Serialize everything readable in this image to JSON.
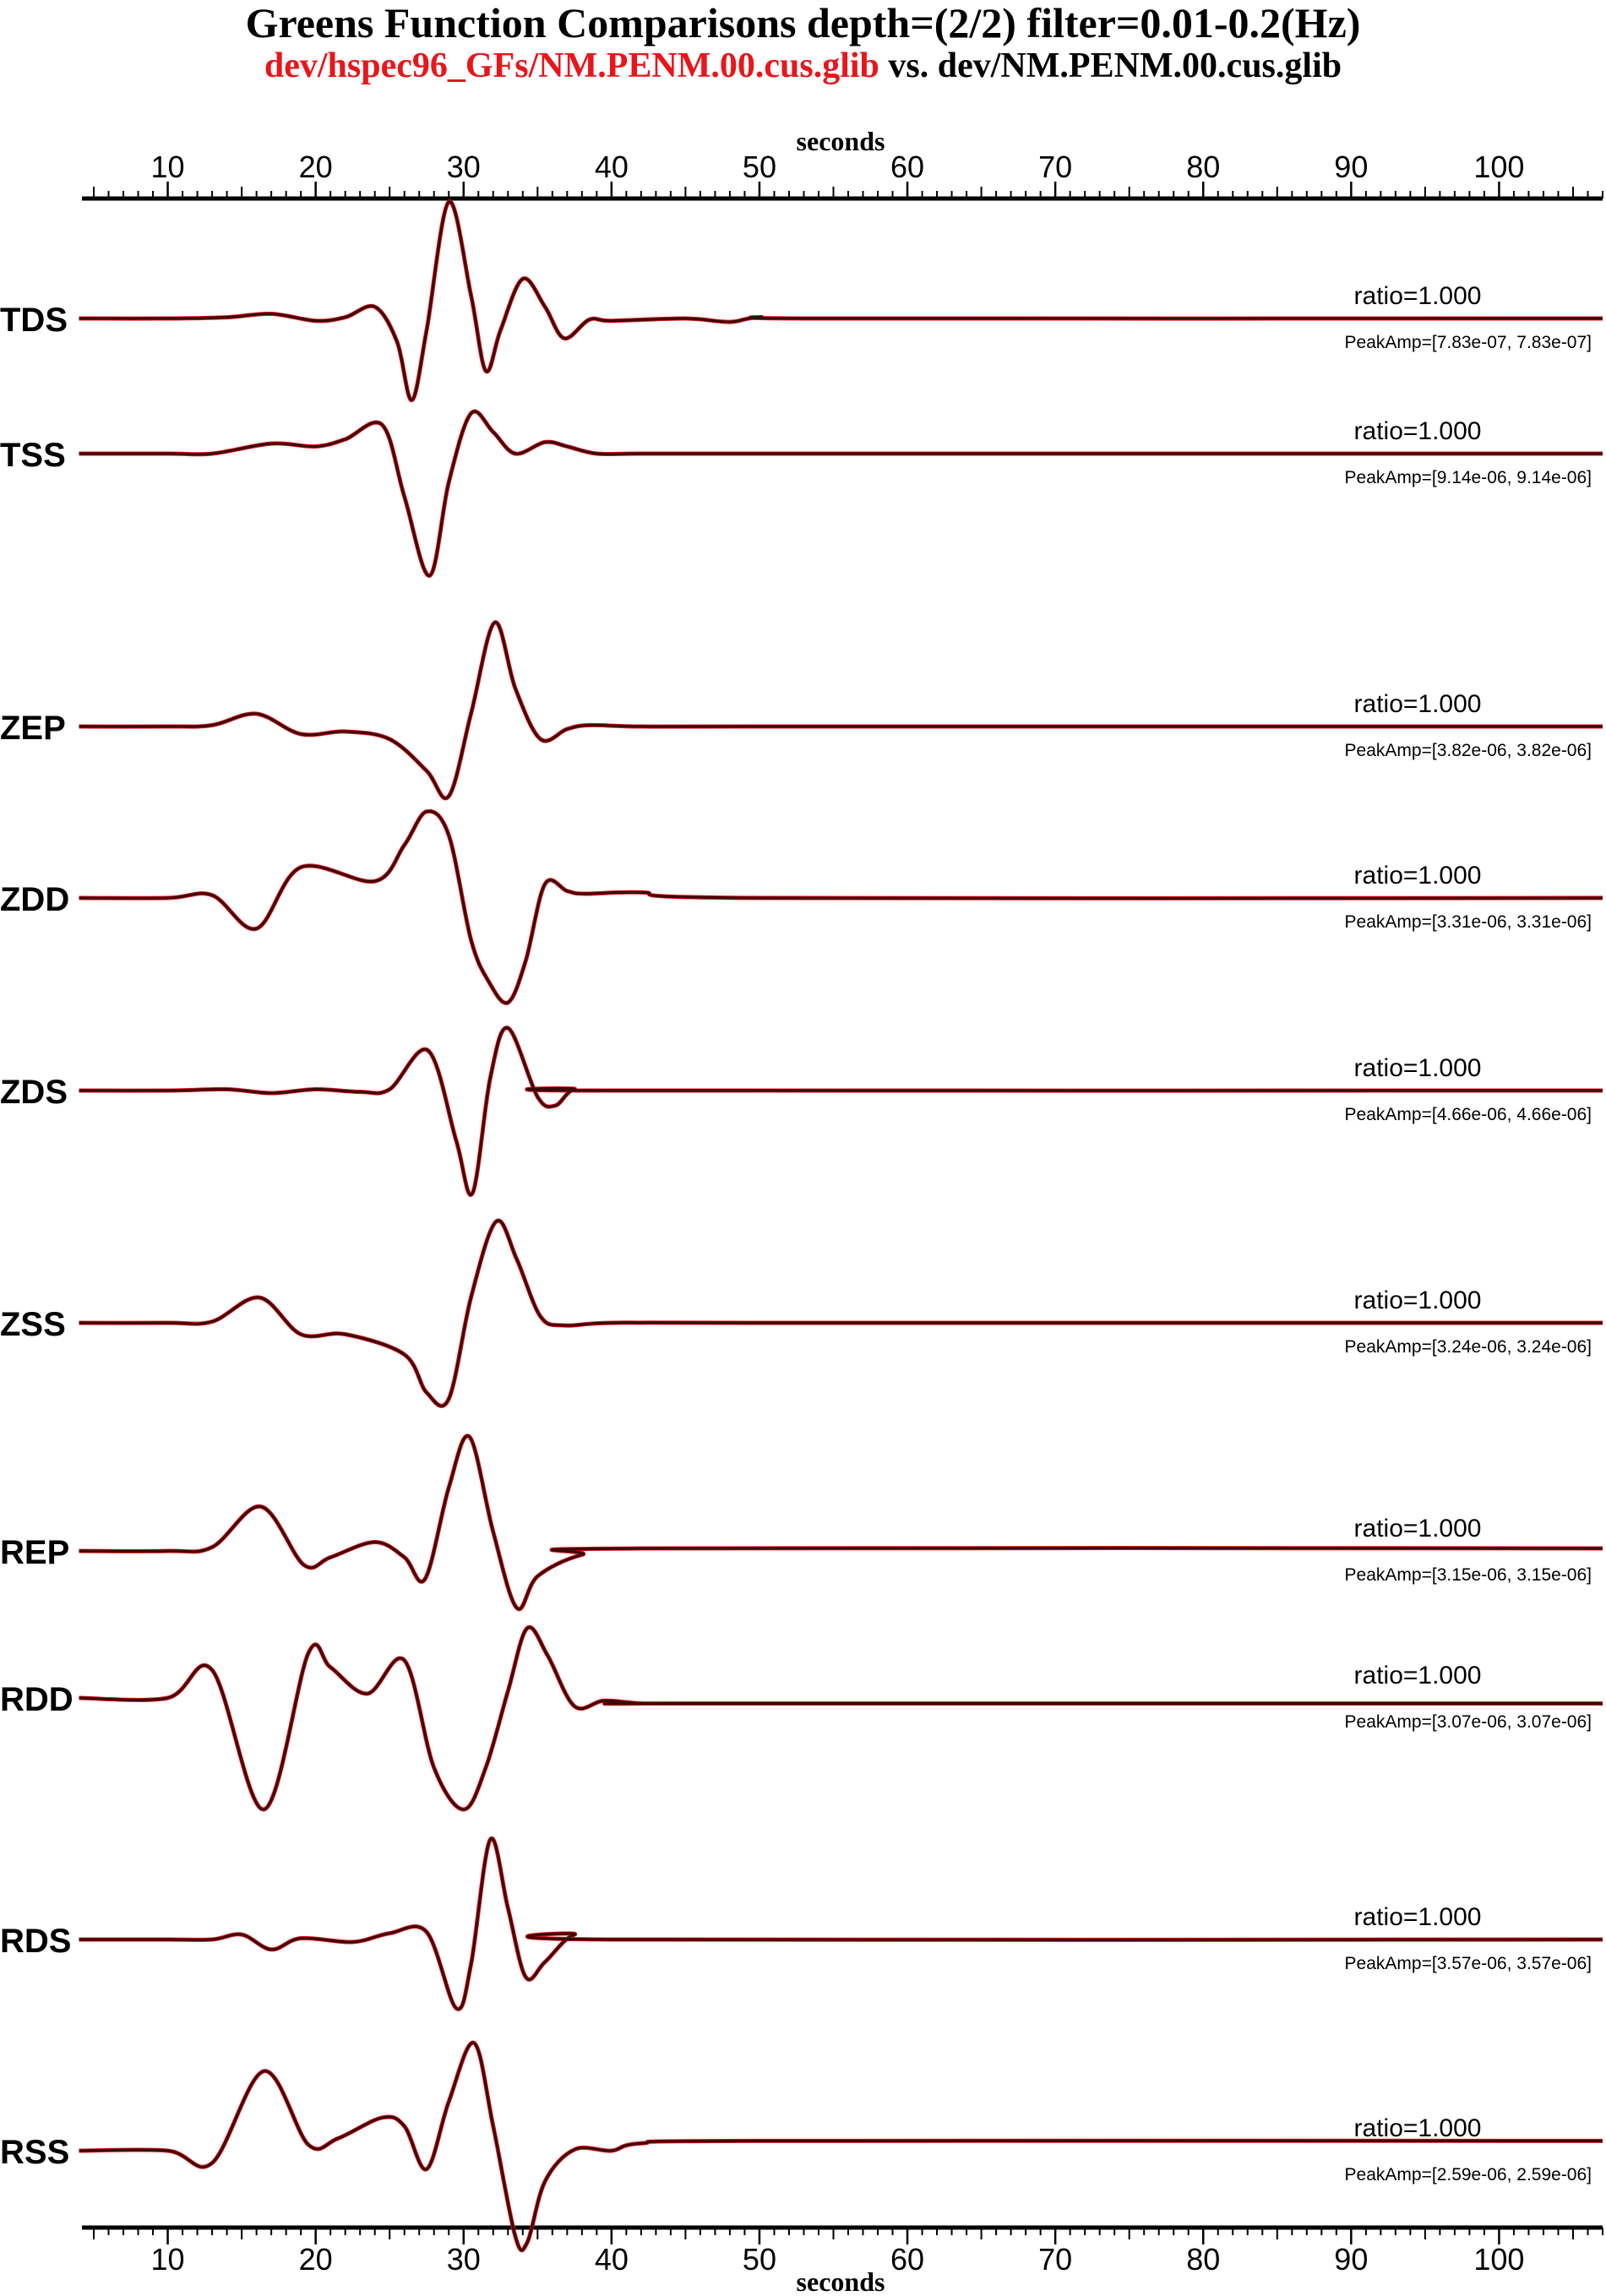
{
  "title": "Greens Function Comparisons depth=(2/2) filter=0.01-0.2(Hz)",
  "subtitle": {
    "file_a": "dev/hspec96_GFs/NM.PENM.00.cus.glib",
    "separator": " vs. ",
    "file_b": "dev/NM.PENM.00.cus.glib"
  },
  "colors": {
    "file_a": "#e8161b",
    "file_b": "#000000",
    "trace": "#3a0a0a"
  },
  "chart_data": {
    "type": "line",
    "xlabel": "seconds",
    "xlim": [
      4.2,
      107.0
    ],
    "x_ticks": [
      10,
      20,
      30,
      40,
      50,
      60,
      70,
      80,
      90,
      100
    ],
    "x_minor_step": 1,
    "units": "seconds",
    "series": [
      {
        "name": "TDS",
        "ratio": "ratio=1.000",
        "peak": "PeakAmp=[7.83e-07, 7.83e-07]",
        "x": [
          4,
          10,
          14,
          17,
          20,
          22,
          24,
          25.5,
          26.5,
          27.5,
          29,
          30.5,
          31.5,
          32.5,
          34,
          35.5,
          36.8,
          38.5,
          40,
          45,
          48,
          50,
          55,
          107
        ],
        "y": [
          0,
          0,
          0.01,
          0.04,
          -0.02,
          0.01,
          0.1,
          -0.2,
          -0.7,
          -0.1,
          1.0,
          0.2,
          -0.45,
          -0.1,
          0.34,
          0.1,
          -0.17,
          -0.01,
          -0.02,
          0,
          -0.03,
          0.01,
          0,
          0
        ]
      },
      {
        "name": "TSS",
        "ratio": "ratio=1.000",
        "peak": "PeakAmp=[9.14e-06, 9.14e-06]",
        "x": [
          4,
          10,
          13,
          17,
          20,
          22,
          24.5,
          26,
          27.7,
          29,
          30.5,
          32,
          33.5,
          35.5,
          37,
          39,
          42,
          50,
          107
        ],
        "y": [
          0,
          0,
          0,
          0.07,
          0.05,
          0.1,
          0.2,
          -0.3,
          -0.85,
          -0.2,
          0.28,
          0.15,
          0.0,
          0.08,
          0.05,
          0.0,
          0,
          0,
          0
        ]
      },
      {
        "name": "ZEP",
        "ratio": "ratio=1.000",
        "peak": "PeakAmp=[3.82e-06, 3.82e-06]",
        "x": [
          4,
          10,
          13,
          16,
          19,
          22,
          25,
          27.5,
          29,
          30.5,
          32.1,
          33.5,
          35.2,
          37,
          38.5,
          42,
          50,
          107
        ],
        "y": [
          0,
          0,
          0.01,
          0.1,
          -0.06,
          -0.04,
          -0.1,
          -0.35,
          -0.55,
          0.1,
          0.82,
          0.3,
          -0.1,
          -0.02,
          0.01,
          0,
          0,
          0
        ]
      },
      {
        "name": "ZDD",
        "ratio": "ratio=1.000",
        "peak": "PeakAmp=[3.31e-06, 3.31e-06]",
        "x": [
          4,
          10,
          13,
          16,
          19,
          24,
          26,
          27.5,
          29,
          30.5,
          31.7,
          33,
          34.2,
          35.5,
          37,
          38.2,
          42,
          50,
          107
        ],
        "y": [
          0,
          0,
          0.02,
          -0.22,
          0.22,
          0.12,
          0.38,
          0.62,
          0.45,
          -0.3,
          -0.6,
          -0.75,
          -0.45,
          0.1,
          0.05,
          0.03,
          0.04,
          0,
          0
        ]
      },
      {
        "name": "ZDS",
        "ratio": "ratio=1.000",
        "peak": "PeakAmp=[4.66e-06, 4.66e-06]",
        "x": [
          4,
          10,
          14,
          17,
          20,
          23,
          25,
          27.6,
          29.5,
          30.6,
          31.8,
          33,
          35,
          36.2,
          37.5,
          40,
          107
        ],
        "y": [
          0,
          0,
          0.01,
          -0.02,
          0.01,
          -0.01,
          0.01,
          0.32,
          -0.4,
          -0.82,
          0.1,
          0.5,
          -0.05,
          -0.12,
          0.01,
          0,
          0
        ]
      },
      {
        "name": "ZSS",
        "ratio": "ratio=1.000",
        "peak": "PeakAmp=[3.24e-06, 3.24e-06]",
        "x": [
          4,
          10,
          13,
          16.2,
          19,
          22,
          26,
          27.5,
          29,
          30.5,
          32.2,
          33.6,
          35.2,
          36.8,
          40,
          50,
          107
        ],
        "y": [
          0,
          0,
          0.01,
          0.2,
          -0.09,
          -0.09,
          -0.25,
          -0.55,
          -0.6,
          0.2,
          0.8,
          0.5,
          0.05,
          -0.02,
          0,
          0,
          0
        ]
      },
      {
        "name": "REP",
        "ratio": "ratio=1.000",
        "peak": "PeakAmp=[3.15e-06, 3.15e-06]",
        "x": [
          4,
          10,
          13,
          16.3,
          19.2,
          21,
          24,
          26,
          27.4,
          29,
          30.4,
          32,
          33.6,
          35,
          38,
          42,
          107
        ],
        "y": [
          0,
          0,
          0.03,
          0.35,
          -0.11,
          -0.05,
          0.07,
          -0.05,
          -0.22,
          0.5,
          0.9,
          0.15,
          -0.45,
          -0.2,
          -0.03,
          0.02,
          0.02
        ]
      },
      {
        "name": "RDD",
        "ratio": "ratio=1.000",
        "peak": "PeakAmp=[3.07e-06, 3.07e-06]",
        "x": [
          4,
          10,
          13,
          16.5,
          19.5,
          21,
          23.5,
          26,
          28,
          30,
          31.5,
          33,
          34.3,
          35.7,
          37.5,
          39.5,
          42,
          45,
          107
        ],
        "y": [
          0,
          0,
          0.2,
          -0.8,
          0.32,
          0.22,
          0.03,
          0.27,
          -0.5,
          -0.8,
          -0.5,
          0.05,
          0.5,
          0.3,
          -0.06,
          -0.02,
          -0.04,
          -0.04,
          -0.04
        ]
      },
      {
        "name": "RDS",
        "ratio": "ratio=1.000",
        "peak": "PeakAmp=[3.57e-06, 3.57e-06]",
        "x": [
          4,
          10,
          13,
          15,
          17,
          19,
          22.5,
          25,
          27.5,
          29.5,
          30.5,
          31.8,
          33,
          34.2,
          35.5,
          37.5,
          40,
          107
        ],
        "y": [
          0,
          0,
          0,
          0.04,
          -0.08,
          0.01,
          -0.02,
          0.05,
          0.06,
          -0.55,
          -0.2,
          0.8,
          0.25,
          -0.3,
          -0.18,
          0.04,
          0,
          0
        ]
      },
      {
        "name": "RSS",
        "ratio": "ratio=1.000",
        "peak": "PeakAmp=[2.59e-06, 2.59e-06]",
        "x": [
          4,
          10,
          13,
          16.5,
          19.5,
          21.5,
          24.5,
          26,
          27.5,
          29,
          30.7,
          32,
          33.5,
          34.3,
          35.5,
          37.5,
          40,
          42,
          50,
          107
        ],
        "y": [
          0,
          0,
          -0.1,
          0.65,
          0.05,
          0.1,
          0.27,
          0.2,
          -0.15,
          0.4,
          0.88,
          0.2,
          -0.7,
          -0.75,
          -0.25,
          0.01,
          0,
          0.06,
          0.08,
          0.08
        ]
      }
    ]
  }
}
